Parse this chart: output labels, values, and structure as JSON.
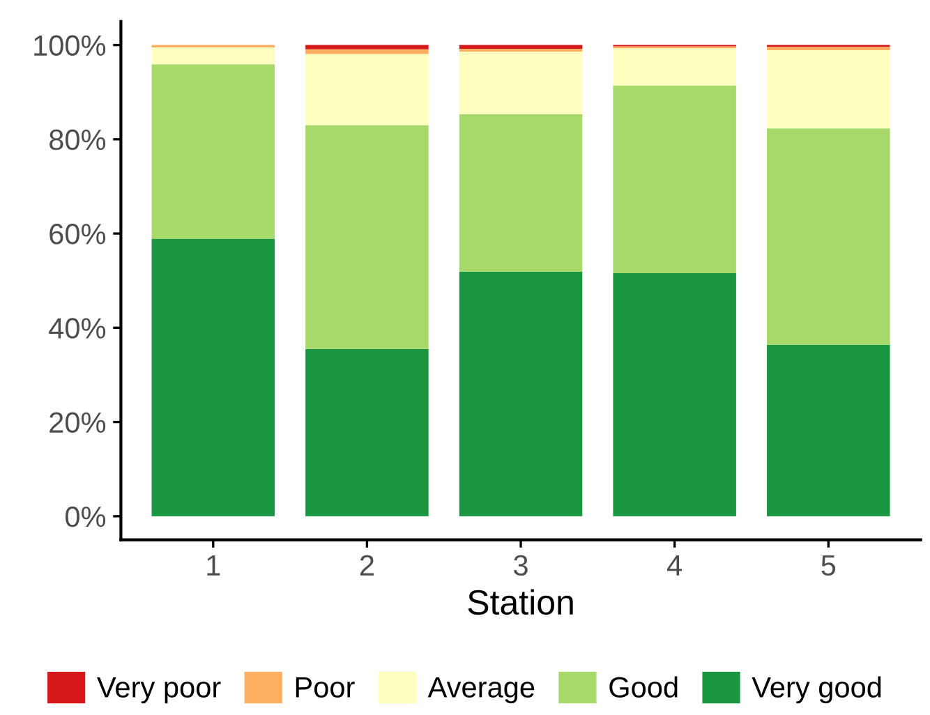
{
  "chart_data": {
    "type": "bar",
    "stacked": true,
    "xlabel": "Station",
    "categories": [
      "1",
      "2",
      "3",
      "4",
      "5"
    ],
    "series": [
      {
        "name": "Very good",
        "color": "#1a9641",
        "values": [
          58.9,
          35.5,
          51.9,
          51.6,
          36.4
        ]
      },
      {
        "name": "Good",
        "color": "#a6d96a",
        "values": [
          37.0,
          47.5,
          33.4,
          39.8,
          45.9
        ]
      },
      {
        "name": "Average",
        "color": "#ffffbf",
        "values": [
          3.6,
          15.1,
          13.3,
          7.9,
          16.6
        ]
      },
      {
        "name": "Poor",
        "color": "#fdae61",
        "values": [
          0.5,
          1.0,
          0.6,
          0.4,
          0.7
        ]
      },
      {
        "name": "Very poor",
        "color": "#d7191c",
        "values": [
          0,
          0.9,
          0.8,
          0.3,
          0.4
        ]
      }
    ],
    "ylim": [
      -5,
      105
    ],
    "yticks": [
      {
        "value": 0,
        "label": "0%"
      },
      {
        "value": 20,
        "label": "20%"
      },
      {
        "value": 40,
        "label": "40%"
      },
      {
        "value": 60,
        "label": "60%"
      },
      {
        "value": 80,
        "label": "80%"
      },
      {
        "value": 100,
        "label": "100%"
      }
    ],
    "legend": "bottom",
    "grid": false
  }
}
